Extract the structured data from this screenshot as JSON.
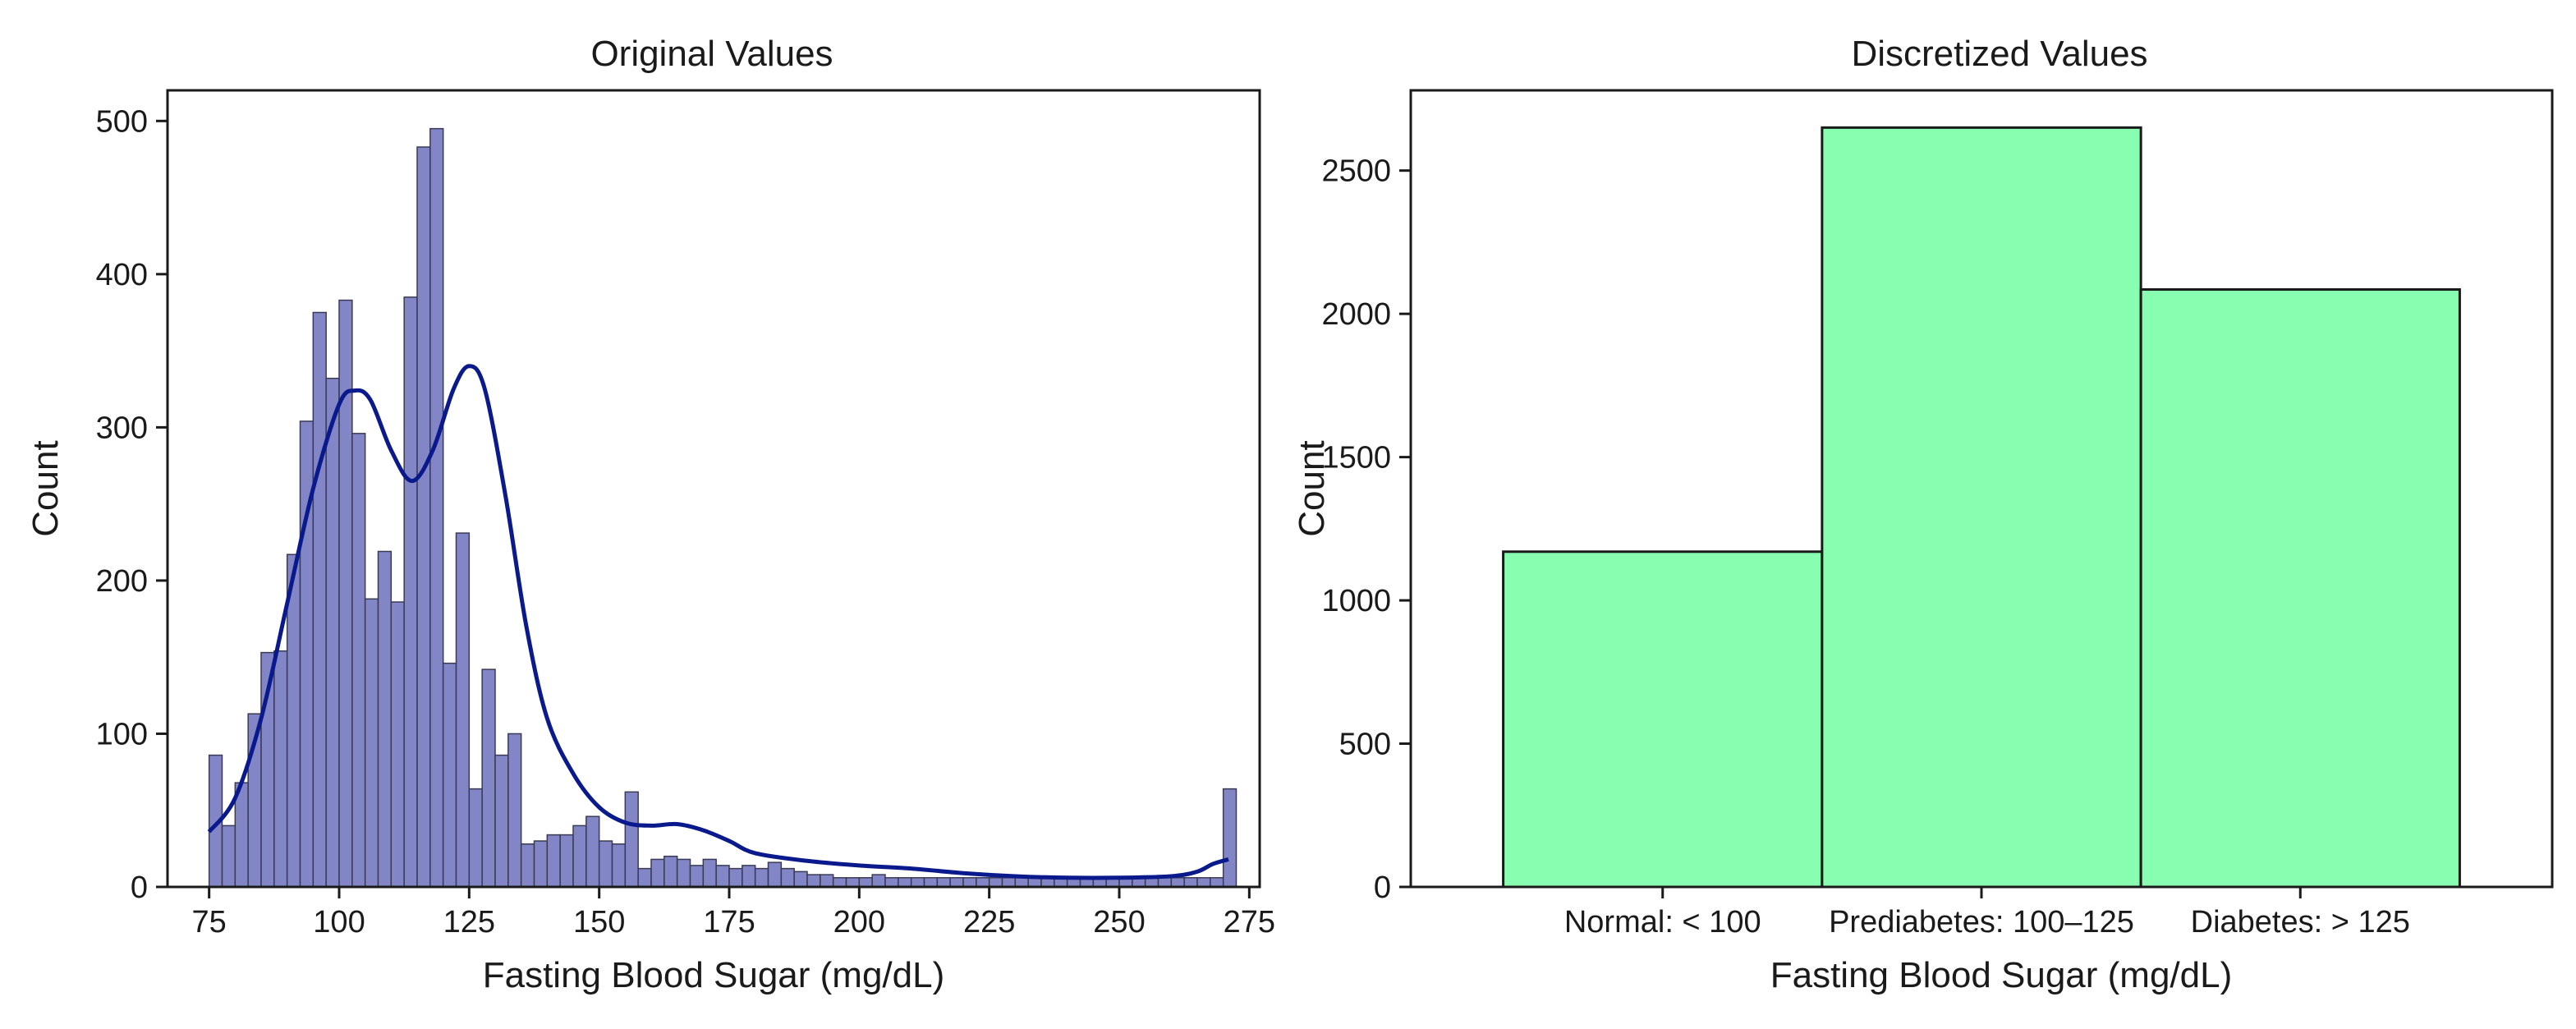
{
  "chart_data": [
    {
      "type": "histogram",
      "title": "Original Values",
      "xlabel": "Fasting Blood Sugar (mg/dL)",
      "ylabel": "Count",
      "xlim": [
        67,
        277
      ],
      "ylim": [
        0,
        520
      ],
      "xticks": [
        75,
        100,
        125,
        150,
        175,
        200,
        225,
        250,
        275
      ],
      "yticks": [
        0,
        100,
        200,
        300,
        400,
        500
      ],
      "bin_start": 75,
      "bin_width": 2.5,
      "values": [
        86,
        40,
        68,
        113,
        153,
        154,
        217,
        304,
        375,
        332,
        383,
        296,
        188,
        219,
        186,
        385,
        483,
        495,
        146,
        231,
        64,
        142,
        86,
        100,
        28,
        30,
        34,
        34,
        40,
        46,
        30,
        28,
        62,
        12,
        18,
        20,
        18,
        14,
        18,
        14,
        12,
        14,
        12,
        16,
        12,
        10,
        8,
        8,
        6,
        6,
        6,
        8,
        6,
        6,
        6,
        6,
        6,
        6,
        6,
        6,
        6,
        6,
        6,
        6,
        6,
        6,
        6,
        6,
        6,
        6,
        6,
        6,
        6,
        6,
        6,
        6,
        6,
        6,
        64
      ],
      "kde": {
        "x": [
          75,
          80,
          85,
          90,
          95,
          100,
          103,
          106,
          110,
          114,
          118,
          122,
          125,
          128,
          132,
          136,
          140,
          145,
          150,
          155,
          160,
          165,
          170,
          175,
          180,
          190,
          200,
          210,
          220,
          230,
          240,
          250,
          260,
          265,
          268,
          271
        ],
        "y": [
          36,
          58,
          110,
          185,
          260,
          315,
          324,
          318,
          285,
          265,
          285,
          325,
          340,
          325,
          255,
          170,
          110,
          74,
          52,
          42,
          40,
          41,
          37,
          30,
          22,
          17,
          14,
          12,
          9,
          7,
          6,
          6,
          7,
          10,
          15,
          18
        ]
      },
      "bar_color": "#7b7fc4",
      "kde_color": "#0a1a8c"
    },
    {
      "type": "bar",
      "title": "Discretized Values",
      "xlabel": "Fasting Blood Sugar (mg/dL)",
      "ylabel": "Count",
      "categories": [
        "Normal: < 100",
        "Prediabetes: 100–125",
        "Diabetes: > 125"
      ],
      "values": [
        1170,
        2650,
        2085
      ],
      "ylim": [
        0,
        2780
      ],
      "yticks": [
        0,
        500,
        1000,
        1500,
        2000,
        2500
      ],
      "bar_color": "#88ffb0"
    }
  ]
}
